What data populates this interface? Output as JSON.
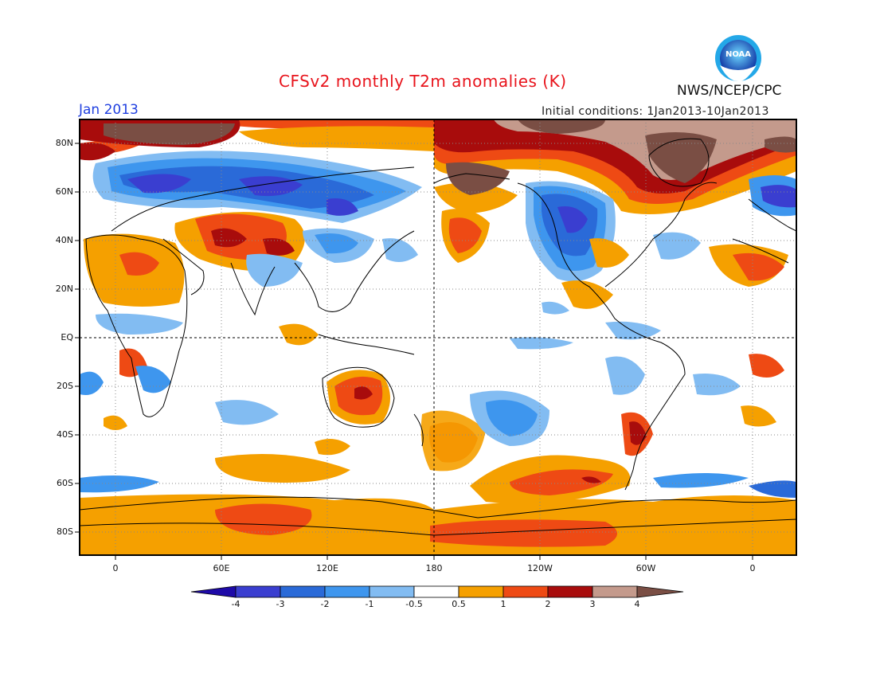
{
  "header": {
    "title": "CFSv2 monthly T2m anomalies (K)",
    "month": "Jan 2013",
    "initial_conditions": "Initial conditions: 1Jan2013-10Jan2013",
    "agency": "NWS/NCEP/CPC",
    "logo_text": "NOAA"
  },
  "map": {
    "projection": "equirectangular",
    "lat_range": [
      -90,
      90
    ],
    "lon_range": [
      -20,
      380
    ],
    "lat_labels": [
      "80N",
      "60N",
      "40N",
      "20N",
      "EQ",
      "20S",
      "40S",
      "60S",
      "80S"
    ],
    "lon_labels": [
      "0",
      "60E",
      "120E",
      "180",
      "120W",
      "60W",
      "0"
    ],
    "grid": "dotted",
    "reference_lines": [
      "equator",
      "dateline"
    ]
  },
  "colorbar": {
    "labels": [
      "-4",
      "-3",
      "-2",
      "-1",
      "-0.5",
      "0.5",
      "1",
      "2",
      "3",
      "4"
    ],
    "colors": [
      "#1e0aa8",
      "#3a3ed0",
      "#2a6ad8",
      "#3e96ee",
      "#82bcf2",
      "#ffffff",
      "#f5a000",
      "#ee4a14",
      "#a80c0c",
      "#c49a8c",
      "#7a4e44"
    ]
  },
  "colors": {
    "title": "#e8141c",
    "month": "#1f3fe0",
    "ocean_neutral": "#ffffff"
  }
}
